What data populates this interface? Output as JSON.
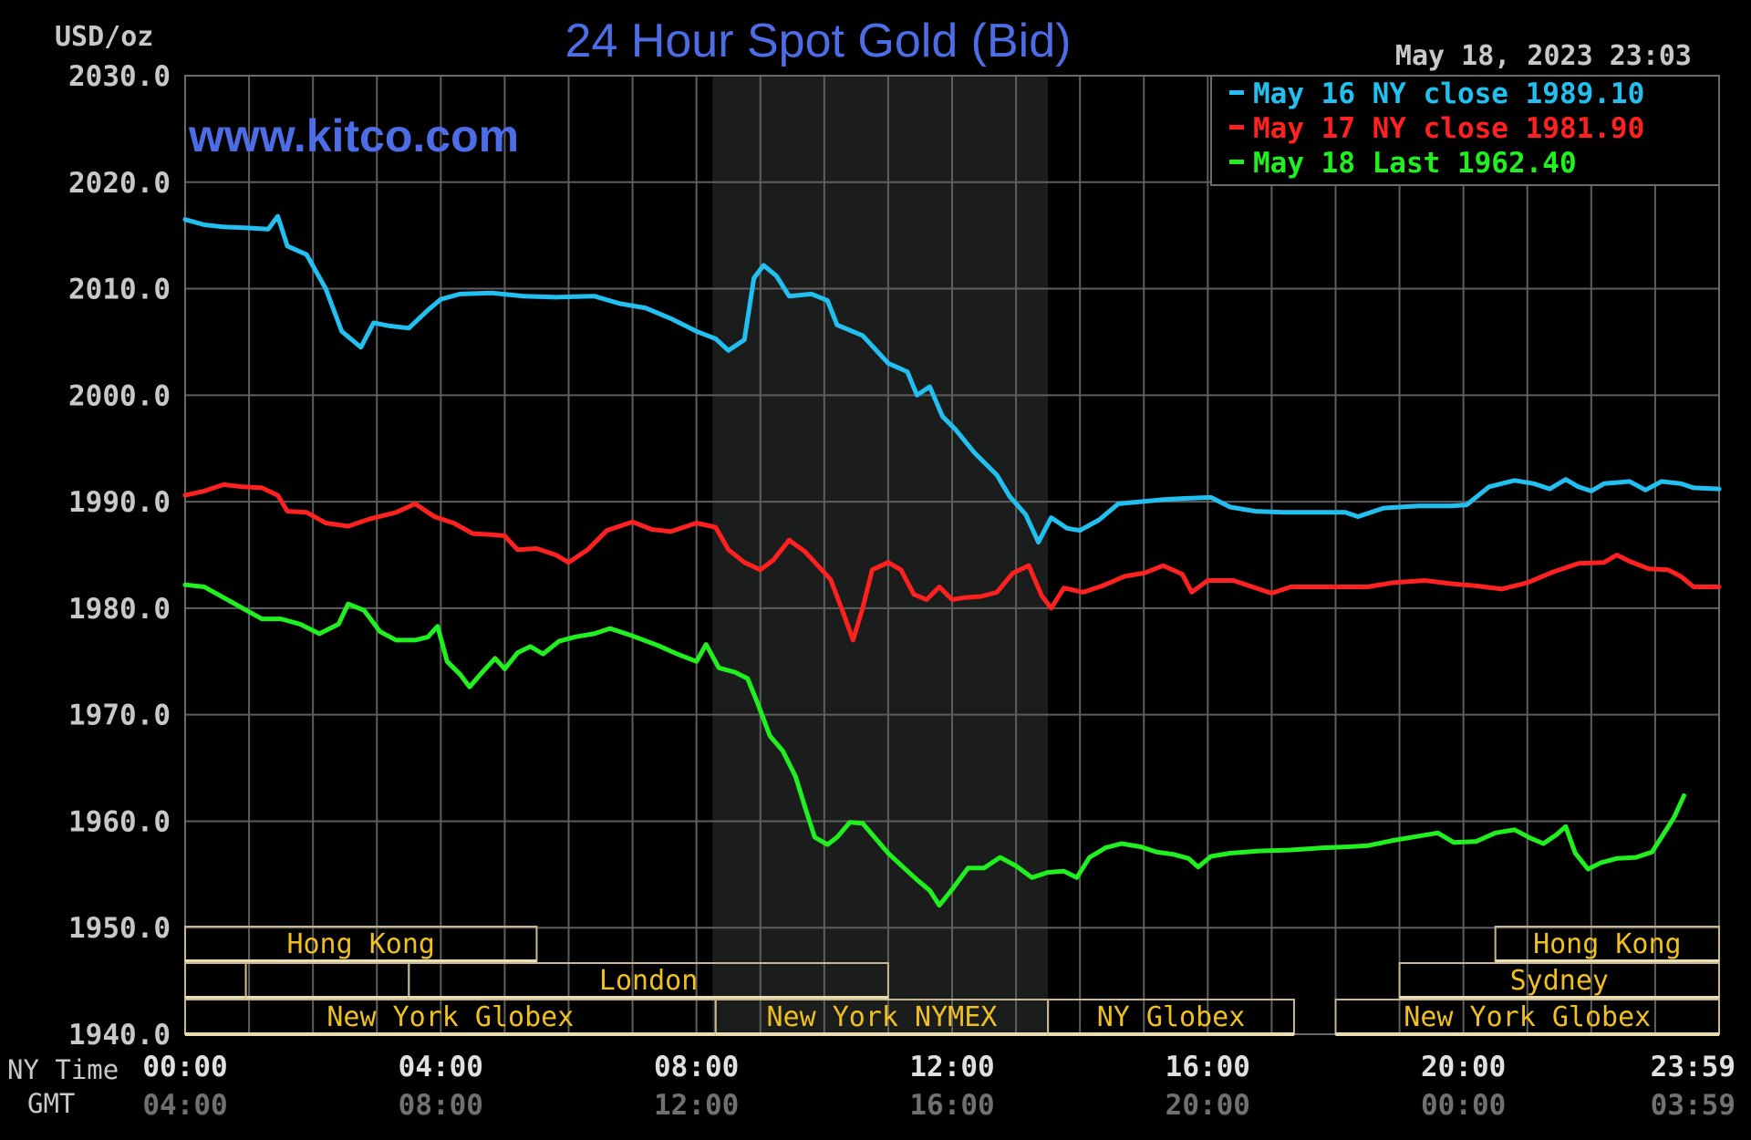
{
  "chart_data": {
    "type": "line",
    "title": "24 Hour Spot Gold (Bid)",
    "unit_label": "USD/oz",
    "watermark": "www.kitco.com",
    "timestamp": "May 18, 2023 23:03",
    "ylim": [
      1940,
      2030
    ],
    "y_ticks": [
      "2030.0",
      "2020.0",
      "2010.0",
      "2000.0",
      "1990.0",
      "1980.0",
      "1970.0",
      "1960.0",
      "1950.0",
      "1940.0"
    ],
    "x_axis": {
      "label_ny": "NY Time",
      "label_gmt": "GMT",
      "range_hours": [
        0,
        24
      ],
      "ticks": [
        {
          "h": 0,
          "ny": "00:00",
          "gmt": "04:00"
        },
        {
          "h": 4,
          "ny": "04:00",
          "gmt": "08:00"
        },
        {
          "h": 8,
          "ny": "08:00",
          "gmt": "12:00"
        },
        {
          "h": 12,
          "ny": "12:00",
          "gmt": "16:00"
        },
        {
          "h": 16,
          "ny": "16:00",
          "gmt": "20:00"
        },
        {
          "h": 20,
          "ny": "20:00",
          "gmt": "00:00"
        },
        {
          "h": 24,
          "ny": "23:59",
          "gmt": "03:59"
        }
      ]
    },
    "grid": true,
    "legend_position": "top-right",
    "highlight_band_hours": [
      8.25,
      13.5
    ],
    "series": [
      {
        "name": "May 16 NY close 1989.10",
        "legend_parts": [
          "May 16 NY close",
          "1989.10"
        ],
        "color": "#22c0f0",
        "points": [
          [
            0,
            2016.5
          ],
          [
            0.3,
            2016
          ],
          [
            0.6,
            2015.8
          ],
          [
            1.0,
            2015.7
          ],
          [
            1.3,
            2015.6
          ],
          [
            1.45,
            2016.8
          ],
          [
            1.6,
            2014
          ],
          [
            1.9,
            2013.2
          ],
          [
            2.2,
            2010
          ],
          [
            2.45,
            2006
          ],
          [
            2.75,
            2004.5
          ],
          [
            2.95,
            2006.8
          ],
          [
            3.2,
            2006.5
          ],
          [
            3.5,
            2006.3
          ],
          [
            3.8,
            2008
          ],
          [
            4.0,
            2009
          ],
          [
            4.3,
            2009.5
          ],
          [
            4.8,
            2009.6
          ],
          [
            5.3,
            2009.3
          ],
          [
            5.8,
            2009.2
          ],
          [
            6.4,
            2009.3
          ],
          [
            6.8,
            2008.6
          ],
          [
            7.2,
            2008.2
          ],
          [
            7.6,
            2007.2
          ],
          [
            8.0,
            2006
          ],
          [
            8.3,
            2005.3
          ],
          [
            8.5,
            2004.2
          ],
          [
            8.75,
            2005.2
          ],
          [
            8.9,
            2011
          ],
          [
            9.05,
            2012.2
          ],
          [
            9.25,
            2011.2
          ],
          [
            9.45,
            2009.3
          ],
          [
            9.8,
            2009.5
          ],
          [
            10.05,
            2008.9
          ],
          [
            10.2,
            2006.6
          ],
          [
            10.6,
            2005.6
          ],
          [
            11.0,
            2003
          ],
          [
            11.3,
            2002.2
          ],
          [
            11.45,
            2000
          ],
          [
            11.65,
            2000.8
          ],
          [
            11.85,
            1998
          ],
          [
            12.05,
            1996.8
          ],
          [
            12.35,
            1994.6
          ],
          [
            12.7,
            1992.5
          ],
          [
            12.9,
            1990.5
          ],
          [
            13.15,
            1988.8
          ],
          [
            13.35,
            1986.2
          ],
          [
            13.55,
            1988.5
          ],
          [
            13.8,
            1987.5
          ],
          [
            14.0,
            1987.3
          ],
          [
            14.3,
            1988.3
          ],
          [
            14.6,
            1989.8
          ],
          [
            14.95,
            1990
          ],
          [
            15.3,
            1990.2
          ],
          [
            15.6,
            1990.3
          ],
          [
            16.05,
            1990.4
          ],
          [
            16.35,
            1989.5
          ],
          [
            16.75,
            1989.1
          ],
          [
            17.2,
            1989
          ],
          [
            17.7,
            1989
          ],
          [
            18.15,
            1989
          ],
          [
            18.35,
            1988.6
          ],
          [
            18.75,
            1989.4
          ],
          [
            19.3,
            1989.6
          ],
          [
            19.8,
            1989.6
          ],
          [
            20.05,
            1989.7
          ],
          [
            20.4,
            1991.4
          ],
          [
            20.8,
            1992
          ],
          [
            21.1,
            1991.7
          ],
          [
            21.35,
            1991.2
          ],
          [
            21.6,
            1992.1
          ],
          [
            21.8,
            1991.4
          ],
          [
            22.0,
            1991
          ],
          [
            22.2,
            1991.7
          ],
          [
            22.6,
            1991.9
          ],
          [
            22.85,
            1991.1
          ],
          [
            23.1,
            1991.9
          ],
          [
            23.4,
            1991.7
          ],
          [
            23.6,
            1991.3
          ],
          [
            24.0,
            1991.2
          ]
        ]
      },
      {
        "name": "May 17 NY close 1981.90",
        "legend_parts": [
          "May 17 NY close",
          "1981.90"
        ],
        "color": "#ff2020",
        "points": [
          [
            0,
            1990.6
          ],
          [
            0.3,
            1991
          ],
          [
            0.6,
            1991.6
          ],
          [
            0.9,
            1991.4
          ],
          [
            1.2,
            1991.3
          ],
          [
            1.45,
            1990.6
          ],
          [
            1.6,
            1989.1
          ],
          [
            1.9,
            1989
          ],
          [
            2.2,
            1988
          ],
          [
            2.55,
            1987.7
          ],
          [
            2.9,
            1988.4
          ],
          [
            3.3,
            1989
          ],
          [
            3.6,
            1989.8
          ],
          [
            3.9,
            1988.6
          ],
          [
            4.2,
            1988
          ],
          [
            4.5,
            1987
          ],
          [
            4.8,
            1986.9
          ],
          [
            5.0,
            1986.8
          ],
          [
            5.2,
            1985.5
          ],
          [
            5.5,
            1985.6
          ],
          [
            5.8,
            1985
          ],
          [
            6.0,
            1984.3
          ],
          [
            6.3,
            1985.5
          ],
          [
            6.6,
            1987.3
          ],
          [
            7.0,
            1988.1
          ],
          [
            7.3,
            1987.4
          ],
          [
            7.6,
            1987.2
          ],
          [
            8.0,
            1988
          ],
          [
            8.3,
            1987.6
          ],
          [
            8.5,
            1985.5
          ],
          [
            8.75,
            1984.3
          ],
          [
            9.0,
            1983.6
          ],
          [
            9.2,
            1984.5
          ],
          [
            9.45,
            1986.4
          ],
          [
            9.7,
            1985.3
          ],
          [
            9.9,
            1984
          ],
          [
            10.1,
            1982.7
          ],
          [
            10.3,
            1979.5
          ],
          [
            10.45,
            1977
          ],
          [
            10.6,
            1980
          ],
          [
            10.75,
            1983.6
          ],
          [
            11.0,
            1984.3
          ],
          [
            11.2,
            1983.6
          ],
          [
            11.4,
            1981.3
          ],
          [
            11.6,
            1980.8
          ],
          [
            11.8,
            1982
          ],
          [
            12.0,
            1980.8
          ],
          [
            12.2,
            1981
          ],
          [
            12.45,
            1981.1
          ],
          [
            12.7,
            1981.5
          ],
          [
            12.95,
            1983.3
          ],
          [
            13.2,
            1984
          ],
          [
            13.4,
            1981.2
          ],
          [
            13.55,
            1980
          ],
          [
            13.75,
            1981.9
          ],
          [
            14.05,
            1981.5
          ],
          [
            14.35,
            1982.1
          ],
          [
            14.7,
            1983
          ],
          [
            15.0,
            1983.3
          ],
          [
            15.3,
            1984
          ],
          [
            15.6,
            1983.2
          ],
          [
            15.75,
            1981.5
          ],
          [
            16.0,
            1982.6
          ],
          [
            16.4,
            1982.6
          ],
          [
            16.8,
            1981.8
          ],
          [
            17.0,
            1981.4
          ],
          [
            17.3,
            1982
          ],
          [
            17.8,
            1982
          ],
          [
            18.2,
            1982
          ],
          [
            18.5,
            1982
          ],
          [
            18.9,
            1982.4
          ],
          [
            19.4,
            1982.6
          ],
          [
            19.8,
            1982.3
          ],
          [
            20.2,
            1982.1
          ],
          [
            20.6,
            1981.8
          ],
          [
            21.0,
            1982.4
          ],
          [
            21.4,
            1983.4
          ],
          [
            21.8,
            1984.2
          ],
          [
            22.2,
            1984.3
          ],
          [
            22.4,
            1985
          ],
          [
            22.6,
            1984.4
          ],
          [
            22.9,
            1983.7
          ],
          [
            23.2,
            1983.6
          ],
          [
            23.4,
            1983
          ],
          [
            23.6,
            1982
          ],
          [
            24.0,
            1982
          ]
        ]
      },
      {
        "name": "May 18 Last 1962.40",
        "legend_parts": [
          "May 18 Last",
          "1962.40"
        ],
        "color": "#20f020",
        "points": [
          [
            0,
            1982.2
          ],
          [
            0.3,
            1982
          ],
          [
            0.6,
            1981
          ],
          [
            0.9,
            1980
          ],
          [
            1.2,
            1979
          ],
          [
            1.5,
            1979
          ],
          [
            1.8,
            1978.5
          ],
          [
            2.1,
            1977.6
          ],
          [
            2.4,
            1978.5
          ],
          [
            2.55,
            1980.4
          ],
          [
            2.8,
            1979.8
          ],
          [
            3.05,
            1977.8
          ],
          [
            3.3,
            1977
          ],
          [
            3.6,
            1977
          ],
          [
            3.8,
            1977.3
          ],
          [
            3.95,
            1978.3
          ],
          [
            4.1,
            1975
          ],
          [
            4.3,
            1973.8
          ],
          [
            4.45,
            1972.6
          ],
          [
            4.65,
            1974
          ],
          [
            4.85,
            1975.3
          ],
          [
            5.0,
            1974.3
          ],
          [
            5.2,
            1975.8
          ],
          [
            5.4,
            1976.4
          ],
          [
            5.6,
            1975.7
          ],
          [
            5.85,
            1976.9
          ],
          [
            6.1,
            1977.3
          ],
          [
            6.4,
            1977.6
          ],
          [
            6.65,
            1978.1
          ],
          [
            7.0,
            1977.4
          ],
          [
            7.4,
            1976.5
          ],
          [
            7.7,
            1975.7
          ],
          [
            8.0,
            1975
          ],
          [
            8.15,
            1976.6
          ],
          [
            8.35,
            1974.4
          ],
          [
            8.6,
            1974
          ],
          [
            8.8,
            1973.4
          ],
          [
            8.95,
            1971.2
          ],
          [
            9.15,
            1968
          ],
          [
            9.35,
            1966.6
          ],
          [
            9.55,
            1964.2
          ],
          [
            9.7,
            1961.3
          ],
          [
            9.85,
            1958.5
          ],
          [
            10.05,
            1957.8
          ],
          [
            10.2,
            1958.5
          ],
          [
            10.4,
            1959.9
          ],
          [
            10.6,
            1959.8
          ],
          [
            10.8,
            1958.4
          ],
          [
            11.0,
            1957
          ],
          [
            11.25,
            1955.6
          ],
          [
            11.45,
            1954.5
          ],
          [
            11.65,
            1953.5
          ],
          [
            11.8,
            1952.1
          ],
          [
            12.0,
            1953.6
          ],
          [
            12.25,
            1955.6
          ],
          [
            12.5,
            1955.6
          ],
          [
            12.75,
            1956.6
          ],
          [
            13.0,
            1955.8
          ],
          [
            13.25,
            1954.7
          ],
          [
            13.5,
            1955.2
          ],
          [
            13.75,
            1955.3
          ],
          [
            13.95,
            1954.7
          ],
          [
            14.15,
            1956.6
          ],
          [
            14.4,
            1957.5
          ],
          [
            14.65,
            1957.9
          ],
          [
            14.95,
            1957.6
          ],
          [
            15.2,
            1957.1
          ],
          [
            15.45,
            1956.9
          ],
          [
            15.7,
            1956.5
          ],
          [
            15.85,
            1955.7
          ],
          [
            16.05,
            1956.7
          ],
          [
            16.35,
            1957
          ],
          [
            16.8,
            1957.2
          ],
          [
            17.3,
            1957.3
          ],
          [
            17.8,
            1957.5
          ],
          [
            18.2,
            1957.6
          ],
          [
            18.5,
            1957.7
          ],
          [
            18.9,
            1958.2
          ],
          [
            19.3,
            1958.6
          ],
          [
            19.6,
            1958.9
          ],
          [
            19.85,
            1958
          ],
          [
            20.2,
            1958.1
          ],
          [
            20.5,
            1958.9
          ],
          [
            20.8,
            1959.2
          ],
          [
            21.05,
            1958.4
          ],
          [
            21.25,
            1957.9
          ],
          [
            21.45,
            1958.7
          ],
          [
            21.6,
            1959.5
          ],
          [
            21.75,
            1957
          ],
          [
            21.95,
            1955.5
          ],
          [
            22.15,
            1956.1
          ],
          [
            22.4,
            1956.5
          ],
          [
            22.7,
            1956.6
          ],
          [
            22.95,
            1957.1
          ],
          [
            23.1,
            1958.5
          ],
          [
            23.3,
            1960.4
          ],
          [
            23.45,
            1962.4
          ]
        ]
      }
    ],
    "sessions": [
      {
        "row": 0,
        "start": 0,
        "end": 5.5,
        "label": "Hong Kong"
      },
      {
        "row": 0,
        "start": 20.5,
        "end": 24,
        "label": "Hong Kong"
      },
      {
        "row": 1,
        "start": 0,
        "end": 0.95,
        "label": ""
      },
      {
        "row": 1,
        "start": 0.95,
        "end": 3.5,
        "label": ""
      },
      {
        "row": 1,
        "start": 3.5,
        "end": 11,
        "label": "London"
      },
      {
        "row": 1,
        "start": 19.0,
        "end": 24,
        "label": "Sydney"
      },
      {
        "row": 2,
        "start": 0,
        "end": 8.3,
        "label": "New York Globex"
      },
      {
        "row": 2,
        "start": 8.3,
        "end": 13.5,
        "label": "New York NYMEX"
      },
      {
        "row": 2,
        "start": 13.5,
        "end": 17.35,
        "label": "NY Globex"
      },
      {
        "row": 2,
        "start": 18.0,
        "end": 24,
        "label": "New York Globex"
      }
    ]
  }
}
